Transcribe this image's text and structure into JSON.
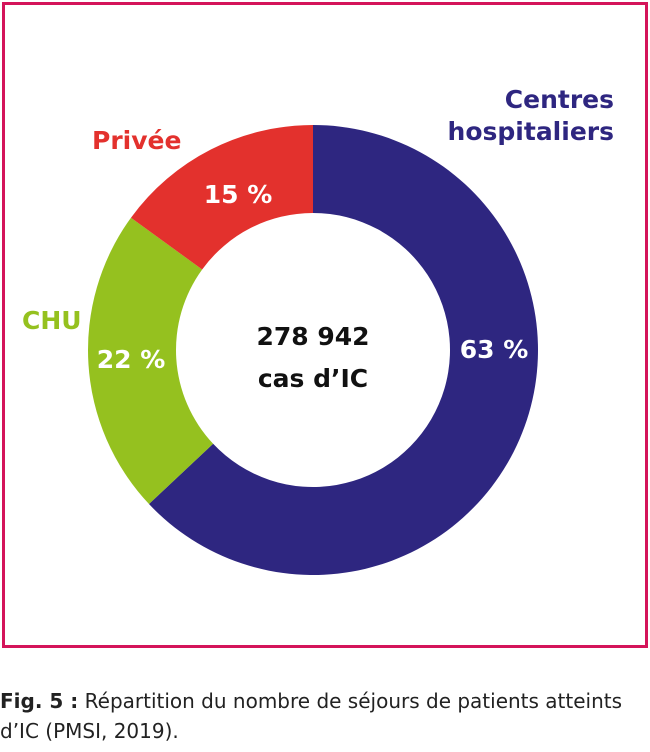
{
  "chart_data": {
    "type": "donut",
    "categories": [
      "Centres hospitaliers",
      "CHU",
      "Privée"
    ],
    "values": [
      63,
      22,
      15
    ],
    "value_labels": [
      "63 %",
      "22 %",
      "15 %"
    ],
    "colors": [
      "#2e2680",
      "#95c11f",
      "#e3312d"
    ],
    "center_text": [
      "278 942",
      "cas d’IC"
    ]
  },
  "caption": {
    "label": "Fig. 5 :",
    "text": "Répartition du nombre de séjours de patients atteints d’IC (PMSI, 2019)."
  }
}
